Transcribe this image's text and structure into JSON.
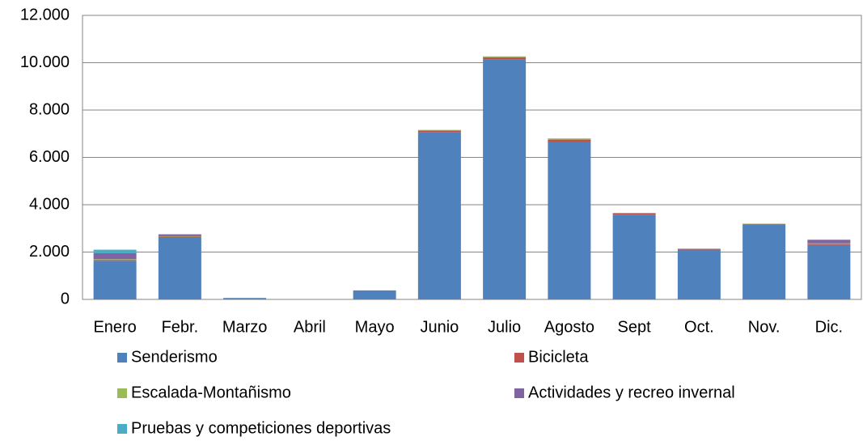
{
  "chart_data": {
    "type": "stacked-bar",
    "categories": [
      "Enero",
      "Febr.",
      "Marzo",
      "Abril",
      "Mayo",
      "Junio",
      "Julio",
      "Agosto",
      "Sept",
      "Oct.",
      "Nov.",
      "Dic."
    ],
    "series": [
      {
        "name": "Senderismo",
        "color": "#4f81bd",
        "values": [
          1630,
          2600,
          60,
          0,
          380,
          7050,
          10150,
          6650,
          3580,
          2100,
          3150,
          2300
        ]
      },
      {
        "name": "Bicicleta",
        "color": "#c0504d",
        "values": [
          40,
          50,
          0,
          0,
          0,
          80,
          80,
          100,
          60,
          30,
          40,
          50
        ]
      },
      {
        "name": "Escalada-Montañismo",
        "color": "#9bbb59",
        "values": [
          30,
          20,
          0,
          0,
          0,
          30,
          40,
          50,
          10,
          20,
          10,
          20
        ]
      },
      {
        "name": "Actividades y recreo invernal",
        "color": "#8064a2",
        "values": [
          250,
          80,
          0,
          0,
          0,
          0,
          0,
          0,
          0,
          0,
          0,
          150
        ]
      },
      {
        "name": "Pruebas y competiciones deportivas",
        "color": "#4bacc6",
        "values": [
          150,
          0,
          0,
          0,
          0,
          0,
          0,
          0,
          0,
          0,
          0,
          0
        ]
      }
    ],
    "ylim": [
      0,
      12000
    ],
    "yticks": [
      0,
      {
        "value": 2000,
        "label": "2.000"
      },
      {
        "value": 4000,
        "label": "4.000"
      },
      {
        "value": 6000,
        "label": "6.000"
      },
      {
        "value": 8000,
        "label": "8.000"
      },
      {
        "value": 10000,
        "label": "10.000"
      },
      {
        "value": 12000,
        "label": "12.000"
      }
    ],
    "grid": true
  }
}
